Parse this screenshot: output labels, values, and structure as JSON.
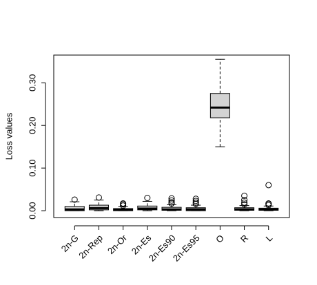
{
  "chart_data": {
    "type": "boxplot",
    "ylabel": "Loss values",
    "categories": [
      "2n-G",
      "2n-Rep",
      "2n-Or",
      "2n-Es",
      "2n-Es90",
      "2n-Es95",
      "O",
      "R",
      "L"
    ],
    "boxes": [
      {
        "min": 0.0,
        "q1": 0.0,
        "median": 0.003,
        "q3": 0.01,
        "max": 0.021,
        "outliers": [
          0.026
        ]
      },
      {
        "min": 0.0,
        "q1": 0.002,
        "median": 0.006,
        "q3": 0.013,
        "max": 0.025,
        "outliers": [
          0.031
        ]
      },
      {
        "min": 0.0,
        "q1": 0.0,
        "median": 0.002,
        "q3": 0.005,
        "max": 0.01,
        "outliers": [
          0.012,
          0.015,
          0.017
        ]
      },
      {
        "min": 0.0,
        "q1": 0.002,
        "median": 0.005,
        "q3": 0.011,
        "max": 0.022,
        "outliers": [
          0.03
        ]
      },
      {
        "min": 0.0,
        "q1": 0.001,
        "median": 0.003,
        "q3": 0.008,
        "max": 0.014,
        "outliers": [
          0.017,
          0.02,
          0.024,
          0.029
        ]
      },
      {
        "min": 0.0,
        "q1": 0.0,
        "median": 0.003,
        "q3": 0.007,
        "max": 0.013,
        "outliers": [
          0.016,
          0.019,
          0.023,
          0.028
        ]
      },
      {
        "min": 0.15,
        "q1": 0.218,
        "median": 0.242,
        "q3": 0.275,
        "max": 0.355,
        "outliers": []
      },
      {
        "min": 0.0,
        "q1": 0.001,
        "median": 0.003,
        "q3": 0.007,
        "max": 0.012,
        "outliers": [
          0.015,
          0.019,
          0.025,
          0.035
        ]
      },
      {
        "min": 0.0,
        "q1": 0.001,
        "median": 0.003,
        "q3": 0.006,
        "max": 0.011,
        "outliers": [
          0.013,
          0.016,
          0.017,
          0.06
        ]
      }
    ],
    "color": "#d3d3d3",
    "ylim": [
      -0.016,
      0.365
    ],
    "yticks": [
      {
        "value": 0.0,
        "label": "0.00"
      },
      {
        "value": 0.1,
        "label": "0.10"
      },
      {
        "value": 0.2,
        "label": "0.20"
      },
      {
        "value": 0.3,
        "label": "0.30"
      }
    ]
  }
}
